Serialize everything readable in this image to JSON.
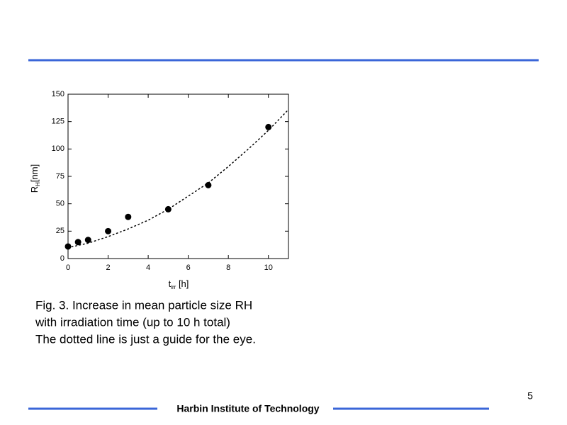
{
  "chart_data": {
    "type": "scatter",
    "xlabel": {
      "main": "t",
      "sub": "irr",
      "rest": " [h]"
    },
    "ylabel": {
      "main": "R",
      "sub": "H",
      "rest": "[nm]"
    },
    "x": [
      0,
      0.5,
      1,
      2,
      3,
      5,
      7,
      10
    ],
    "values": [
      11,
      15,
      17,
      25,
      38,
      45,
      67,
      120
    ],
    "color": "#000000",
    "guide": {
      "x": [
        0,
        1,
        2,
        3,
        4,
        5,
        6,
        7,
        8,
        9,
        10,
        11
      ],
      "values": [
        10,
        14,
        20,
        27,
        35,
        45,
        57,
        69,
        84,
        100,
        117,
        136
      ],
      "style": "dotted"
    },
    "xlim": [
      0,
      11
    ],
    "xticks": [
      0,
      2,
      4,
      6,
      8,
      10
    ],
    "ylim": [
      0,
      150
    ],
    "yticks": [
      0,
      25,
      50,
      75,
      100,
      125,
      150
    ],
    "grid": false
  },
  "caption": [
    "Fig. 3. Increase in mean particle size RH",
    "with irradiation time (up to 10 h total)",
    "The dotted line is just a guide for the eye."
  ],
  "page_number": "5",
  "footer": "Harbin Institute of Technology"
}
